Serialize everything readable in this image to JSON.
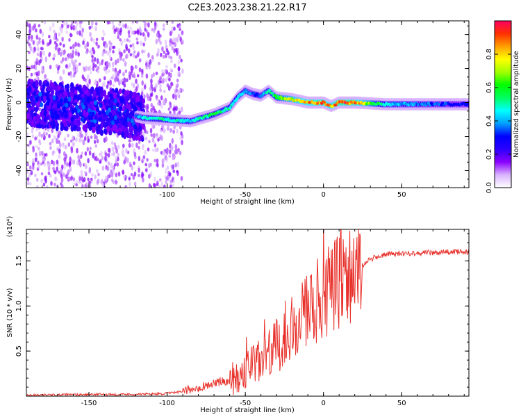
{
  "figure_title": "C2E3.2023.238.21.22.R17",
  "chart_data": [
    {
      "type": "heatmap",
      "title": "",
      "xlabel": "Height of straight line (km)",
      "ylabel": "Frequency (Hz)",
      "xlim": [
        -190,
        93
      ],
      "ylim": [
        -50,
        48
      ],
      "x_ticks": [
        -150,
        -100,
        -50,
        0,
        50
      ],
      "y_ticks": [
        -40,
        -20,
        0,
        20,
        40
      ],
      "colorbar": {
        "label": "Normalized spectral amplitude",
        "range": [
          0,
          1
        ],
        "ticks": [
          "0.0",
          "0.2",
          "0.4",
          "0.6",
          "0.8"
        ],
        "colormap": [
          "#ffffff",
          "#d9b3ff",
          "#8a00ff",
          "#2b00ff",
          "#0000ff",
          "#00a0ff",
          "#00ffff",
          "#00ff60",
          "#00ff00",
          "#a0ff00",
          "#ffff00",
          "#ffa000",
          "#ff3000",
          "#ff0060"
        ]
      },
      "ridge": {
        "x": [
          -190,
          -170,
          -150,
          -130,
          -115,
          -100,
          -85,
          -70,
          -60,
          -55,
          -50,
          -45,
          -40,
          -35,
          -30,
          -20,
          -10,
          0,
          5,
          10,
          20,
          40,
          60,
          93
        ],
        "y": [
          0,
          -2,
          -4,
          -6,
          -9,
          -10,
          -11,
          -7,
          -3,
          3,
          7,
          5,
          4,
          7,
          3,
          2,
          0,
          0,
          -2,
          0,
          0,
          -1,
          -1,
          -1
        ],
        "amplitude": [
          0.2,
          0.25,
          0.22,
          0.2,
          0.45,
          0.5,
          0.45,
          0.55,
          0.5,
          0.45,
          0.4,
          0.35,
          0.35,
          0.5,
          0.6,
          0.75,
          0.85,
          0.9,
          0.8,
          0.92,
          0.9,
          0.45,
          0.38,
          0.3
        ]
      }
    },
    {
      "type": "line",
      "title": "",
      "xlabel": "Height of straight line (km)",
      "ylabel": "SNR (10 * v/v)",
      "scale_label": "(x10⁴)",
      "xlim": [
        -190,
        93
      ],
      "ylim": [
        0,
        1.85
      ],
      "x_ticks": [
        -150,
        -100,
        -50,
        0,
        50
      ],
      "y_ticks": [
        "0.5",
        "1.0",
        "1.5"
      ],
      "line_color": "#e8302a",
      "series": [
        {
          "x": [
            -190,
            -150,
            -120,
            -100,
            -90,
            -80,
            -70,
            -60,
            -55,
            -50,
            -45,
            -40,
            -35,
            -30,
            -25,
            -20,
            -15,
            -10,
            -5,
            0,
            5,
            10,
            15,
            20,
            25,
            30,
            35,
            40,
            50,
            60,
            70,
            80,
            93
          ],
          "y": [
            0.01,
            0.02,
            0.02,
            0.03,
            0.05,
            0.1,
            0.14,
            0.18,
            0.22,
            0.3,
            0.35,
            0.38,
            0.45,
            0.55,
            0.7,
            0.82,
            0.88,
            0.95,
            1.02,
            1.12,
            1.2,
            1.25,
            1.3,
            1.38,
            1.45,
            1.52,
            1.55,
            1.57,
            1.58,
            1.59,
            1.59,
            1.6,
            1.6
          ]
        }
      ]
    }
  ]
}
